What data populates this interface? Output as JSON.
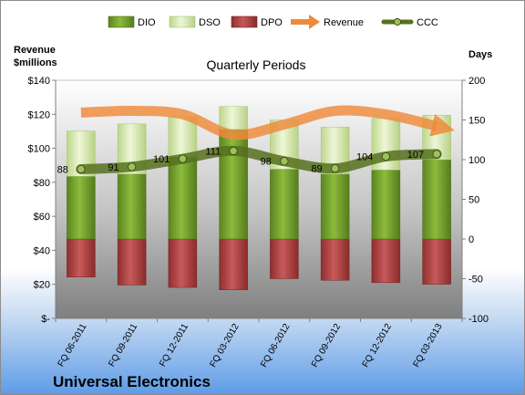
{
  "chart_data": {
    "type": "bar",
    "title": "Quarterly Periods",
    "company": "Universal Electronics",
    "left_axis_label_line1": "Revenue",
    "left_axis_label_line2": "$millions",
    "right_axis_label": "Days",
    "left_ylim": [
      0,
      140
    ],
    "right_ylim": [
      -100,
      200
    ],
    "left_ticks": [
      {
        "value": 0,
        "label": "$-"
      },
      {
        "value": 20,
        "label": "$20"
      },
      {
        "value": 40,
        "label": "$40"
      },
      {
        "value": 60,
        "label": "$60"
      },
      {
        "value": 80,
        "label": "$80"
      },
      {
        "value": 100,
        "label": "$100"
      },
      {
        "value": 120,
        "label": "$120"
      },
      {
        "value": 140,
        "label": "$140"
      }
    ],
    "right_ticks": [
      {
        "value": -100,
        "label": "-100"
      },
      {
        "value": -50,
        "label": "-50"
      },
      {
        "value": 0,
        "label": "0"
      },
      {
        "value": 50,
        "label": "50"
      },
      {
        "value": 100,
        "label": "100"
      },
      {
        "value": 150,
        "label": "150"
      },
      {
        "value": 200,
        "label": "200"
      }
    ],
    "categories": [
      "FQ 06-2011",
      "FQ 09-2011",
      "FQ 12-2011",
      "FQ 03-2012",
      "FQ 06-2012",
      "FQ 09-2012",
      "FQ 12-2012",
      "FQ 03-2013"
    ],
    "legend": [
      "DIO",
      "DSO",
      "DPO",
      "Revenue",
      "CCC"
    ],
    "legend_placement": "top",
    "grid": false,
    "series": [
      {
        "name": "DIO",
        "axis": "right",
        "values": [
          79,
          82,
          103,
          138,
          88,
          82,
          87,
          100
        ],
        "color": "#6f9a2a"
      },
      {
        "name": "DSO",
        "axis": "right",
        "values": [
          57,
          63,
          51,
          29,
          62,
          59,
          65,
          56
        ],
        "color": "#d6e8a8"
      },
      {
        "name": "DPO",
        "axis": "right",
        "values": [
          -48,
          -58,
          -61,
          -64,
          -50,
          -52,
          -55,
          -57
        ],
        "color": "#a33a3a"
      },
      {
        "name": "Revenue",
        "axis": "left",
        "values": [
          121,
          122,
          120,
          108,
          114,
          122,
          120,
          113
        ],
        "color": "#ef8a3a"
      },
      {
        "name": "CCC",
        "axis": "right",
        "values": [
          88,
          91,
          101,
          111,
          98,
          89,
          104,
          107
        ],
        "color": "#56701f"
      }
    ],
    "ccc_data_labels": [
      "88",
      "91",
      "101",
      "111",
      "98",
      "89",
      "104",
      "107"
    ]
  }
}
